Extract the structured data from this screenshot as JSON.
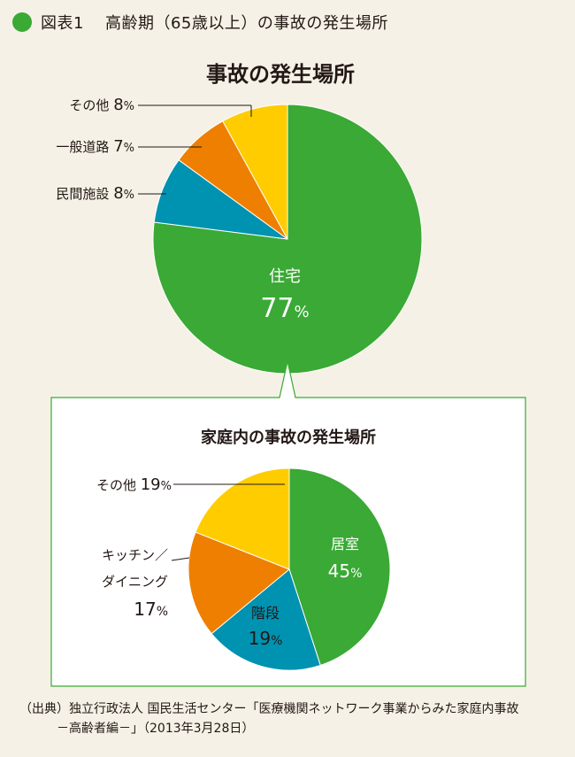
{
  "header": {
    "figure_label": "図表1",
    "title": "高齢期（65歳以上）の事故の発生場所"
  },
  "colors": {
    "green": "#3aa935",
    "blue": "#0092b1",
    "orange": "#ee7f00",
    "yellow": "#ffcc00",
    "accent": "#3aa935"
  },
  "chart_data": [
    {
      "type": "pie",
      "title": "事故の発生場所",
      "slices": [
        {
          "label": "住宅",
          "value": 77,
          "value_text": "77",
          "color": "#3aa935"
        },
        {
          "label": "民間施設",
          "value": 8,
          "value_text": "8",
          "color": "#0092b1"
        },
        {
          "label": "一般道路",
          "value": 7,
          "value_text": "7",
          "color": "#ee7f00"
        },
        {
          "label": "その他",
          "value": 8,
          "value_text": "8",
          "color": "#ffcc00"
        }
      ],
      "unit": "%"
    },
    {
      "type": "pie",
      "title": "家庭内の事故の発生場所",
      "slices": [
        {
          "label": "居室",
          "value": 45,
          "value_text": "45",
          "color": "#3aa935"
        },
        {
          "label": "階段",
          "value": 19,
          "value_text": "19",
          "color": "#0092b1"
        },
        {
          "label": "キッチン／ダイニング",
          "value": 17,
          "value_text": "17",
          "color": "#ee7f00"
        },
        {
          "label": "その他",
          "value": 19,
          "value_text": "19",
          "color": "#ffcc00"
        }
      ],
      "unit": "%"
    }
  ],
  "source": {
    "line1": "（出典）独立行政法人 国民生活センター「医療機関ネットワーク事業からみた家庭内事故",
    "line2": "－高齢者編－」（2013年3月28日）"
  }
}
